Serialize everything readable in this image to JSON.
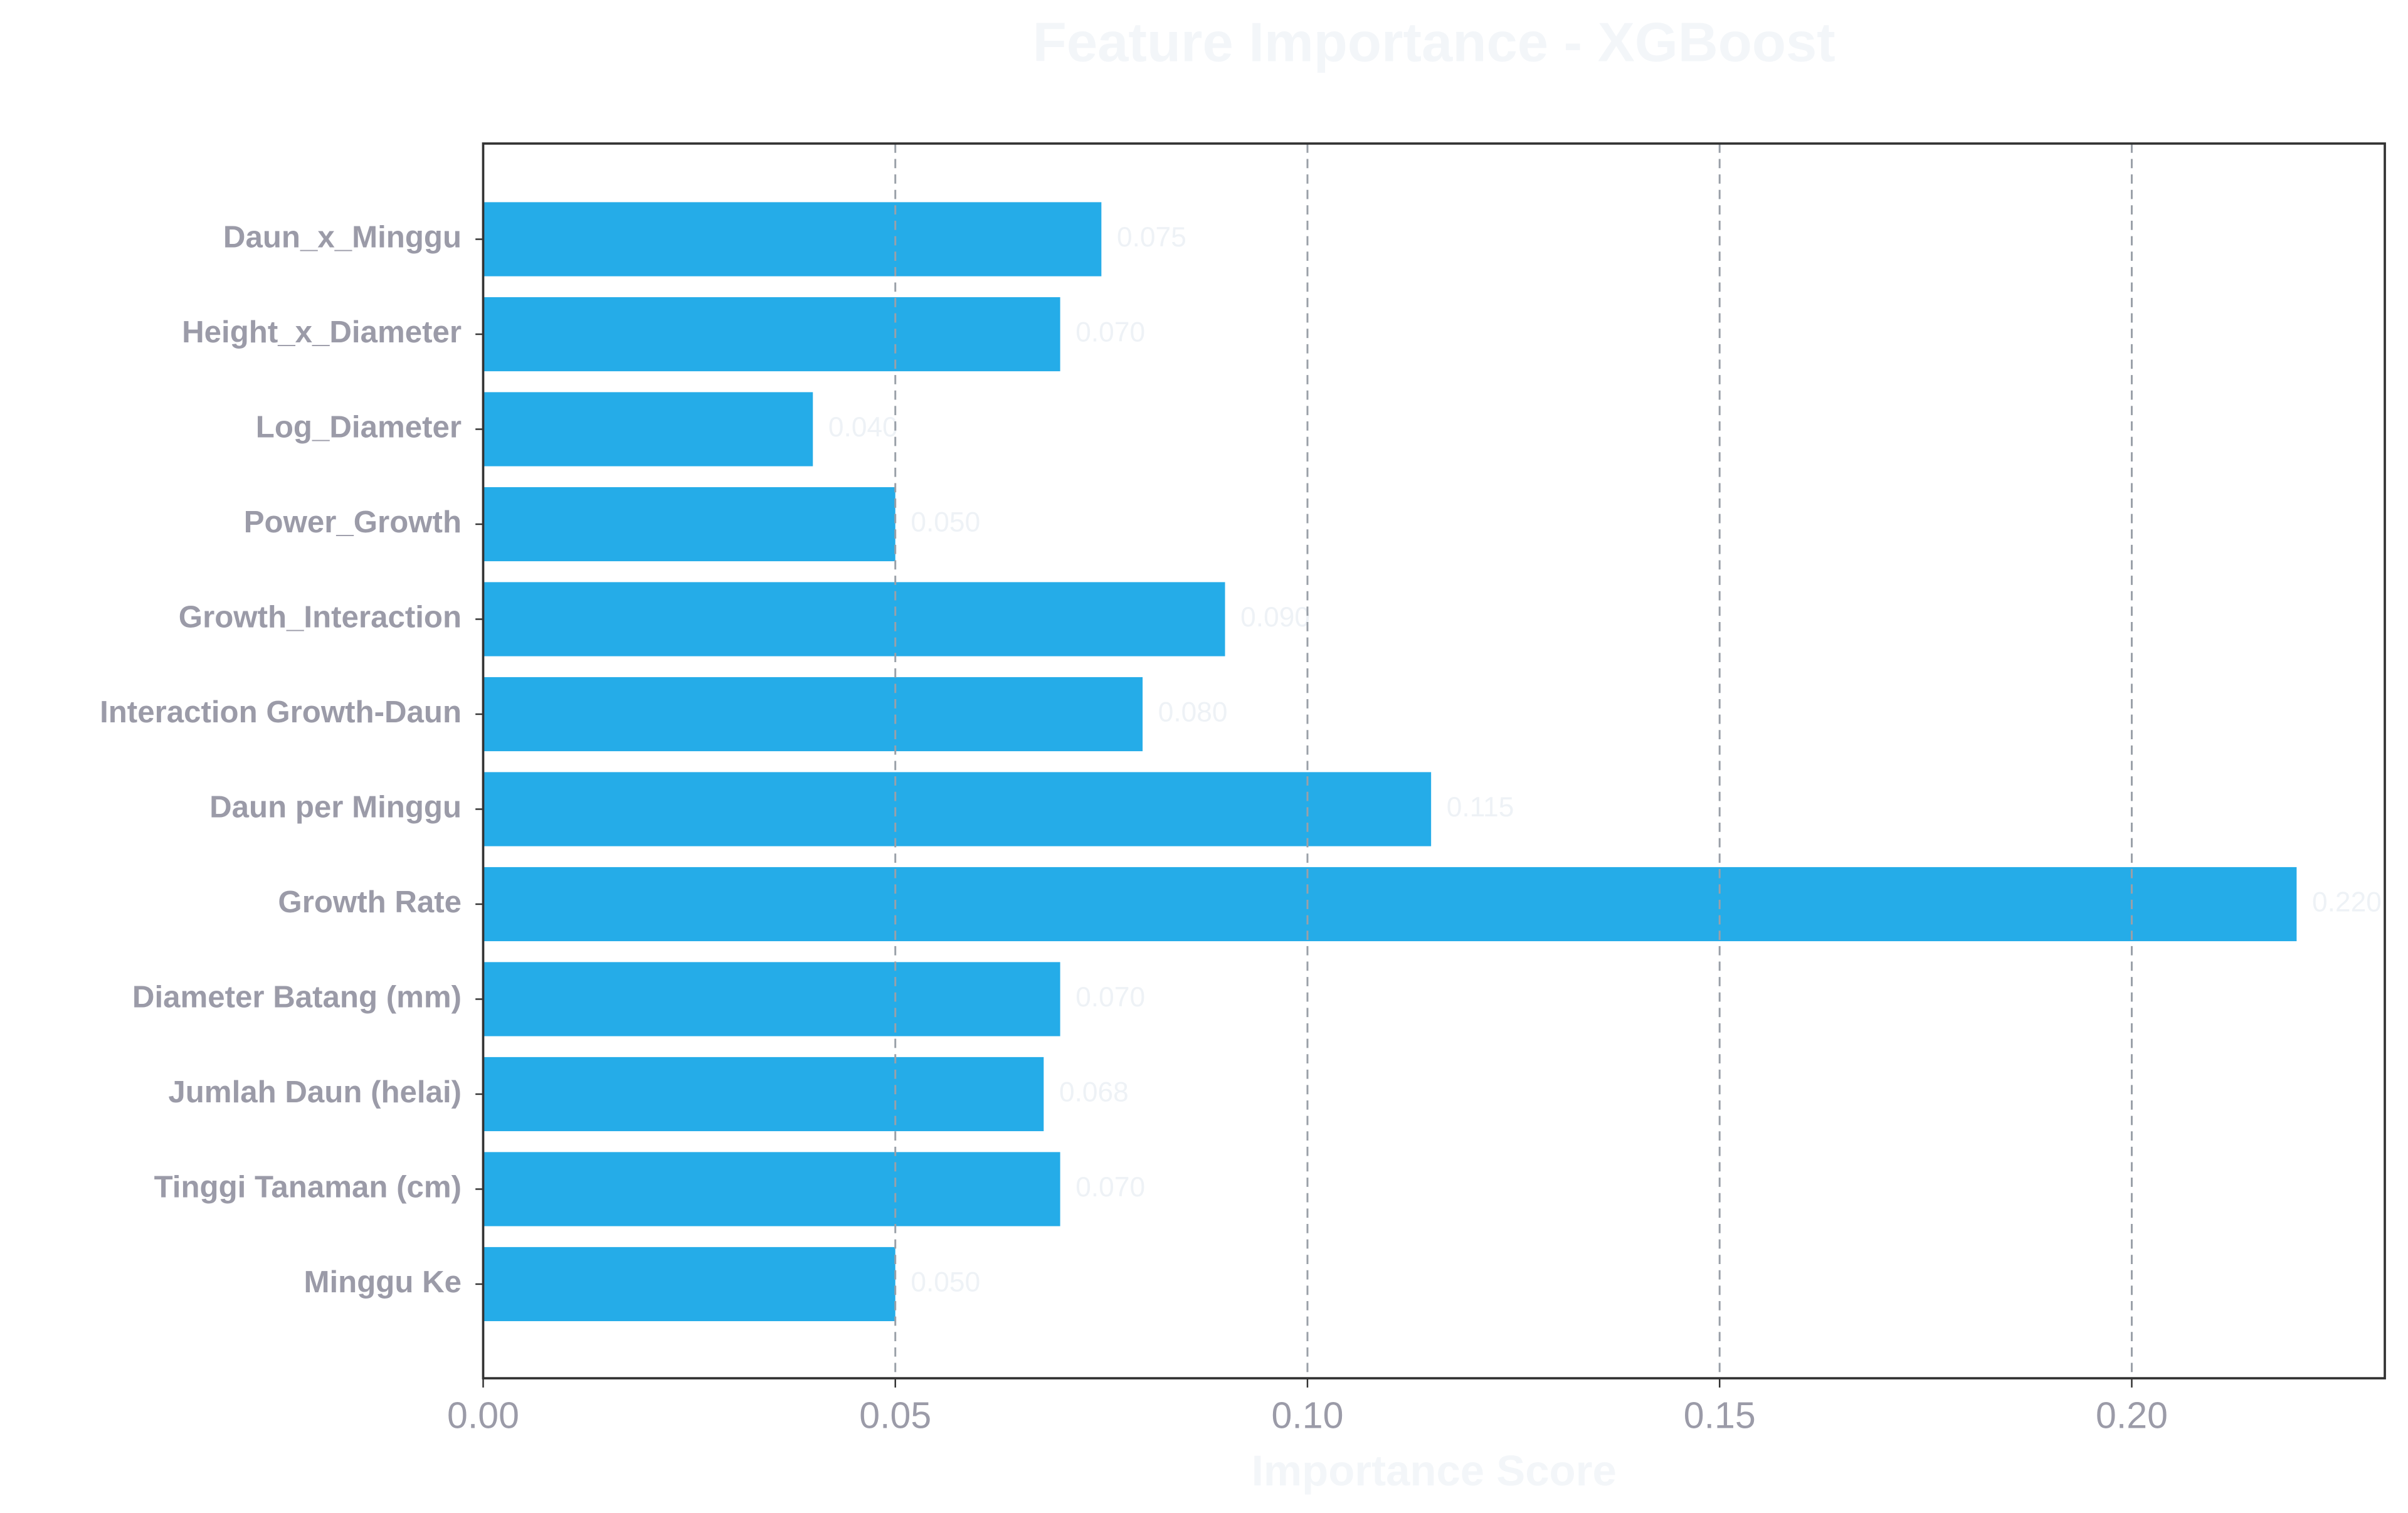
{
  "chart_data": {
    "type": "barh",
    "title": "Feature Importance - XGBoost",
    "xlabel": "Importance Score",
    "categories": [
      "Minggu Ke",
      "Tinggi Tanaman (cm)",
      "Jumlah Daun (helai)",
      "Diameter Batang (mm)",
      "Growth Rate",
      "Daun per Minggu",
      "Interaction Growth-Daun",
      "Growth_Interaction",
      "Power_Growth",
      "Log_Diameter",
      "Height_x_Diameter",
      "Daun_x_Minggu"
    ],
    "values": [
      0.05,
      0.07,
      0.068,
      0.07,
      0.22,
      0.115,
      0.08,
      0.09,
      0.05,
      0.04,
      0.07,
      0.075
    ],
    "value_labels": [
      "0.050",
      "0.070",
      "0.068",
      "0.070",
      "0.220",
      "0.115",
      "0.080",
      "0.090",
      "0.050",
      "0.040",
      "0.070",
      "0.075"
    ],
    "color": "#25ace8",
    "xlim": [
      0,
      0.2307
    ],
    "xticks": [
      {
        "value": 0,
        "label": "0.00"
      },
      {
        "value": 0.05,
        "label": "0.05"
      },
      {
        "value": 0.1,
        "label": "0.10"
      },
      {
        "value": 0.15,
        "label": "0.15"
      },
      {
        "value": 0.2,
        "label": "0.20"
      }
    ],
    "grid": true
  }
}
